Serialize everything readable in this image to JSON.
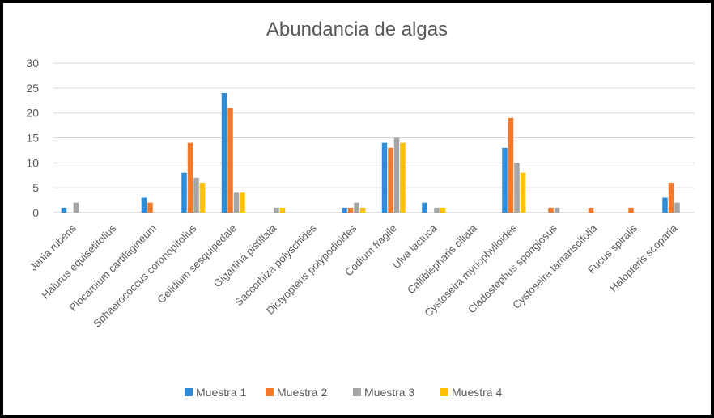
{
  "chart_data": {
    "type": "bar",
    "title": "Abundancia de algas",
    "xlabel": "",
    "ylabel": "",
    "ylim": [
      0,
      30
    ],
    "yticks": [
      0,
      5,
      10,
      15,
      20,
      25,
      30
    ],
    "grid": true,
    "legend_position": "bottom",
    "categories": [
      "Jania rubens",
      "Halurus equisetifolius",
      "Plocamium cartilagineum",
      "Sphaerococcus coronopifolius",
      "Gelidium sesquipedale",
      "Gigartina pistillata",
      "Saccorhiza polyschides",
      "Dictyopteris polypodioides",
      "Codium fragile",
      "Ulva lactuca",
      "Calliblepharis ciliata",
      "Cystoseira myriophylloides",
      "Cladostephus spongiosus",
      "Cystoseira tamariscifolia",
      "Fucus spiralis",
      "Halopteris scoparia"
    ],
    "series": [
      {
        "name": "Muestra 1",
        "color": "#2E8BD8",
        "values": [
          1,
          0,
          3,
          8,
          24,
          0,
          0,
          1,
          14,
          2,
          0,
          13,
          0,
          0,
          0,
          3
        ]
      },
      {
        "name": "Muestra 2",
        "color": "#F37A2C",
        "values": [
          0,
          0,
          2,
          14,
          21,
          0,
          0,
          1,
          13,
          0,
          0,
          19,
          1,
          1,
          1,
          6
        ]
      },
      {
        "name": "Muestra 3",
        "color": "#A5A5A5",
        "values": [
          2,
          0,
          0,
          7,
          4,
          1,
          0,
          2,
          15,
          1,
          0,
          10,
          1,
          0,
          0,
          2
        ]
      },
      {
        "name": "Muestra 4",
        "color": "#FFC000",
        "values": [
          0,
          0,
          0,
          6,
          4,
          1,
          0,
          1,
          14,
          1,
          0,
          8,
          0,
          0,
          0,
          0
        ]
      }
    ]
  }
}
